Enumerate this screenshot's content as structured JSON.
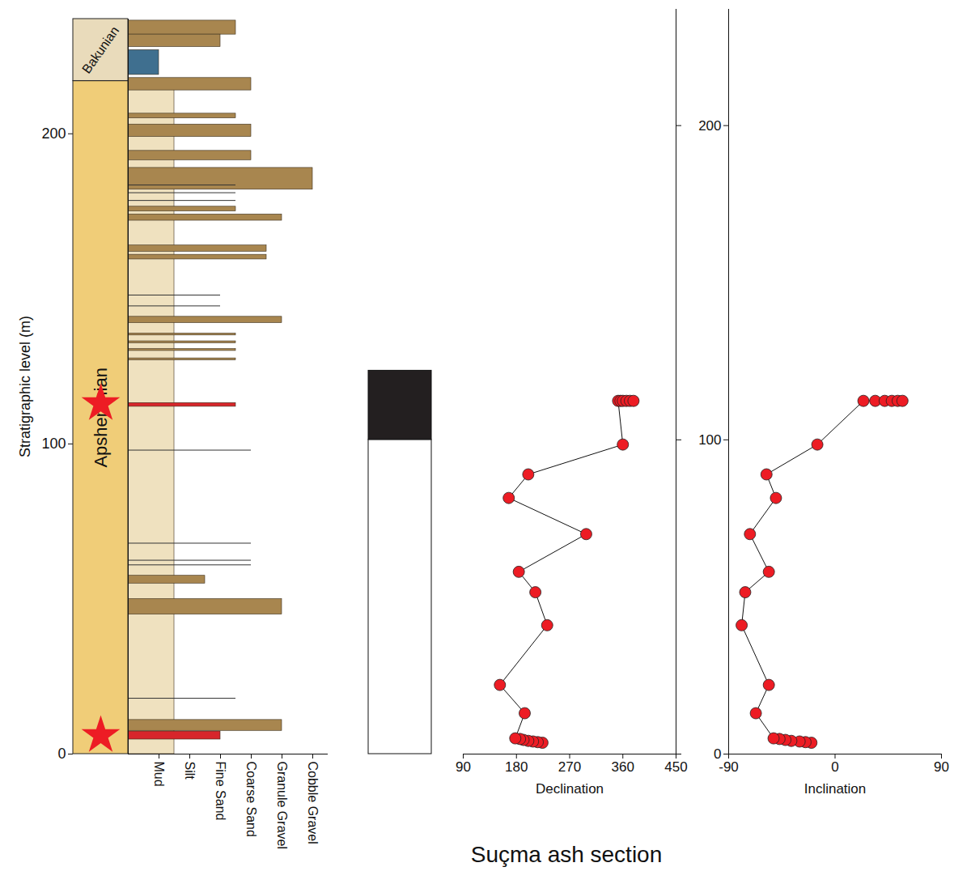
{
  "chart_data": {
    "type": "composite",
    "title": "Suçma ash section",
    "panels": [
      {
        "type": "stratigraphic_column",
        "y_label": "Stratigraphic level (m)",
        "ylim": [
          0,
          237
        ],
        "yticks": [
          0,
          100,
          200
        ],
        "tick_labels": "y",
        "stages": [
          {
            "name": "Apsheronian",
            "bottom": 0,
            "top": 217,
            "color": "#f0cd78"
          },
          {
            "name": "Bakunian",
            "bottom": 217,
            "top": 237,
            "color": "#e9dbbb"
          }
        ],
        "stars": {
          "color": "#ed1c24",
          "values": [
            6,
            113
          ]
        }
      },
      {
        "type": "lithology_log",
        "ylim": [
          0,
          237
        ],
        "xlim": [
          0,
          6.5
        ],
        "xticks": [
          {
            "value": 1,
            "label": "Mud"
          },
          {
            "value": 2,
            "label": "Silt"
          },
          {
            "value": 3,
            "label": "Fine Sand"
          },
          {
            "value": 4,
            "label": "Coarse Sand"
          },
          {
            "value": 5,
            "label": "Granule Gravel"
          },
          {
            "value": 6,
            "label": "Cobble Gravel"
          }
        ],
        "tick_labels": "x",
        "beds": [
          {
            "bottom": 0,
            "top": 217,
            "grain": 1.5,
            "color": "#efe1bf"
          },
          {
            "bottom": 232,
            "top": 236.5,
            "grain": 3.5,
            "color": "#a8864f"
          },
          {
            "bottom": 228,
            "top": 232,
            "grain": 3,
            "color": "#a8864f"
          },
          {
            "bottom": 219,
            "top": 227,
            "grain": 1,
            "color": "#3f6f8f"
          },
          {
            "bottom": 214,
            "top": 218,
            "grain": 4,
            "color": "#a8864f"
          },
          {
            "bottom": 205,
            "top": 206.5,
            "grain": 3.5,
            "color": "#a8864f"
          },
          {
            "bottom": 199,
            "top": 203,
            "grain": 4,
            "color": "#a8864f"
          },
          {
            "bottom": 191.5,
            "top": 194.5,
            "grain": 4,
            "color": "#a8864f"
          },
          {
            "bottom": 182,
            "top": 189,
            "grain": 6,
            "color": "#a8864f"
          },
          {
            "bottom": 175,
            "top": 176.5,
            "grain": 3.5,
            "color": "#a8864f"
          },
          {
            "bottom": 172,
            "top": 174,
            "grain": 5,
            "color": "#a8864f"
          },
          {
            "bottom": 162,
            "top": 164,
            "grain": 4.5,
            "color": "#a8864f"
          },
          {
            "bottom": 159.5,
            "top": 161,
            "grain": 4.5,
            "color": "#a8864f"
          },
          {
            "bottom": 139,
            "top": 141,
            "grain": 5,
            "color": "#a8864f"
          },
          {
            "bottom": 135,
            "top": 135.6,
            "grain": 3.5,
            "color": "#a8864f"
          },
          {
            "bottom": 132.5,
            "top": 133.1,
            "grain": 3.5,
            "color": "#a8864f"
          },
          {
            "bottom": 130,
            "top": 130.6,
            "grain": 3.5,
            "color": "#a8864f"
          },
          {
            "bottom": 127,
            "top": 127.6,
            "grain": 3.5,
            "color": "#a8864f"
          },
          {
            "bottom": 112,
            "top": 113.2,
            "grain": 3.5,
            "color": "#d7262b"
          },
          {
            "bottom": 55,
            "top": 57.5,
            "grain": 2.5,
            "color": "#a8864f"
          },
          {
            "bottom": 45,
            "top": 50,
            "grain": 5,
            "color": "#a8864f"
          },
          {
            "bottom": 7.5,
            "top": 11,
            "grain": 5,
            "color": "#a8864f"
          },
          {
            "bottom": 4.7,
            "top": 7.3,
            "grain": 3,
            "color": "#d7262b"
          }
        ],
        "laminae": [
          {
            "level": 183.5,
            "grain": 3.5
          },
          {
            "level": 181,
            "grain": 3.5
          },
          {
            "level": 178.5,
            "grain": 3.5
          },
          {
            "level": 148,
            "grain": 3
          },
          {
            "level": 144.5,
            "grain": 3
          },
          {
            "level": 98,
            "grain": 4
          },
          {
            "level": 68,
            "grain": 4
          },
          {
            "level": 62.5,
            "grain": 4
          },
          {
            "level": 61,
            "grain": 4
          },
          {
            "level": 18,
            "grain": 3.5
          }
        ]
      },
      {
        "type": "polarity_column",
        "ylim": [
          0,
          237
        ],
        "tick_labels": false,
        "intervals": [
          {
            "bottom": 0,
            "top": 100,
            "color": "#ffffff"
          },
          {
            "bottom": 100,
            "top": 122,
            "color": "#231f20"
          }
        ]
      },
      {
        "type": "line",
        "x_label": "Declination",
        "xlim": [
          90,
          450
        ],
        "xticks": [
          90,
          180,
          270,
          360,
          450
        ],
        "ylim": [
          0,
          237
        ],
        "yticks": [
          0,
          100,
          200
        ],
        "tick_labels": "x",
        "color": "#ed1c24",
        "marker": "circle",
        "y": [
          3.6,
          3.8,
          4.0,
          4.2,
          4.5,
          4.8,
          5.0,
          13,
          22,
          41,
          51.5,
          58,
          70,
          81.5,
          89,
          98.5,
          112.4,
          112.4,
          112.4,
          112.4,
          112.4,
          112.4
        ],
        "x": [
          224,
          216,
          208,
          200,
          192,
          186,
          178,
          194,
          152,
          232,
          212,
          184,
          298,
          167,
          200,
          360,
          352,
          356,
          360,
          366,
          372,
          378
        ]
      },
      {
        "type": "line",
        "x_label": "Inclination",
        "xlim": [
          -90,
          90
        ],
        "xticks": [
          -90,
          0,
          90
        ],
        "ylim": [
          0,
          237
        ],
        "yticks": [
          0,
          100,
          200
        ],
        "color": "#ed1c24",
        "marker": "circle",
        "y": [
          3.6,
          3.8,
          4.0,
          4.2,
          4.5,
          4.8,
          5.0,
          13,
          22,
          41,
          51.5,
          58,
          70,
          81.5,
          89,
          98.5,
          112.4,
          112.4,
          112.4,
          112.4,
          112.4,
          112.4
        ],
        "x": [
          -20,
          -25,
          -30,
          -37,
          -42,
          -47,
          -52,
          -67,
          -56,
          -79,
          -76,
          -56,
          -72,
          -50,
          -58,
          -15,
          24,
          34,
          42,
          48,
          53,
          57
        ]
      }
    ]
  }
}
